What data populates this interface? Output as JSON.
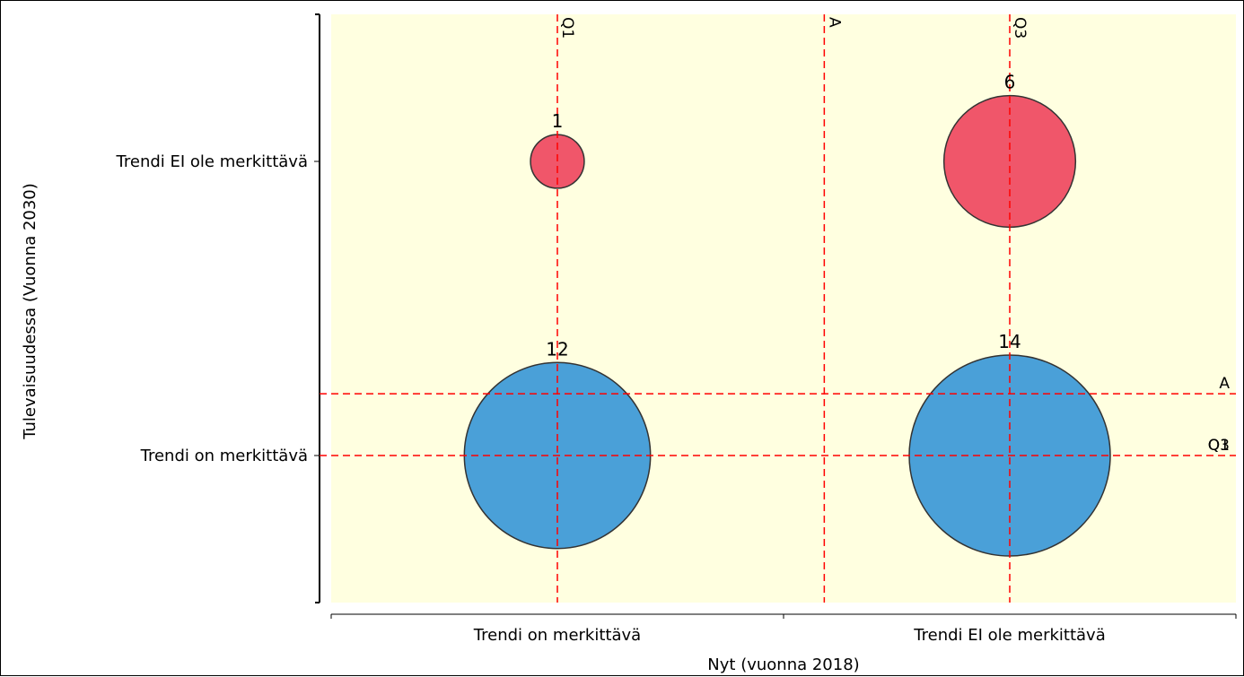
{
  "chart_data": {
    "type": "bubble",
    "xlabel": "Nyt (vuonna 2018)",
    "ylabel": "Tulevaisuudessa (Vuonna 2030)",
    "x_categories": [
      "Trendi on merkittävä",
      "Trendi EI ole merkittävä"
    ],
    "y_categories": [
      "Trendi on merkittävä",
      "Trendi EI ole merkittävä"
    ],
    "xlim": [
      0.5,
      2.5
    ],
    "ylim": [
      0.5,
      2.5
    ],
    "plot_background": "#ffffe0",
    "grid": false,
    "bubbles": [
      {
        "x": 1,
        "y": 2,
        "size": 1,
        "label": "1",
        "color": "#f0566a"
      },
      {
        "x": 2,
        "y": 2,
        "size": 6,
        "label": "6",
        "color": "#f0566a"
      },
      {
        "x": 1,
        "y": 1,
        "size": 12,
        "label": "12",
        "color": "#4aa0d8"
      },
      {
        "x": 2,
        "y": 1,
        "size": 14,
        "label": "14",
        "color": "#4aa0d8"
      }
    ],
    "reference_lines": {
      "color": "#ff0000",
      "vertical": [
        {
          "label": "Q1",
          "value": 1.0
        },
        {
          "label": "A",
          "value": 1.59
        },
        {
          "label": "Q3",
          "value": 2.0
        }
      ],
      "horizontal": [
        {
          "label": "A",
          "value": 1.21
        },
        {
          "label": "Q1",
          "value": 1.0
        },
        {
          "label": "Q3",
          "value": 1.0
        }
      ]
    }
  }
}
